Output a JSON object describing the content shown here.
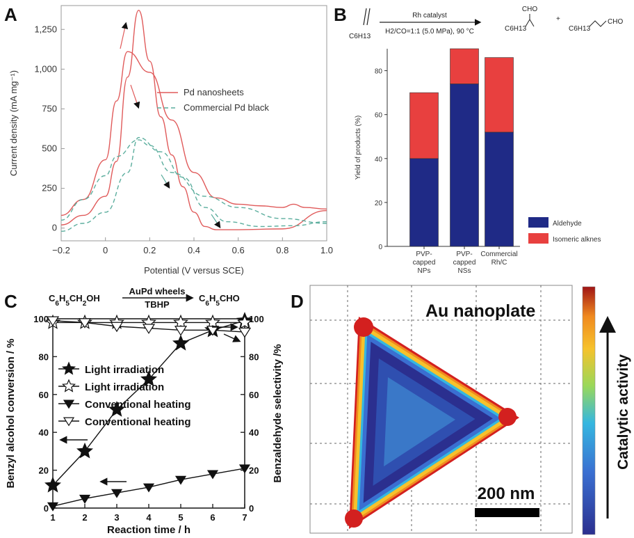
{
  "chart_data": [
    {
      "panel": "A",
      "type": "line",
      "xlabel": "Potential (V versus SCE)",
      "ylabel": "Current density (mA mg⁻¹)",
      "xlim": [
        -0.2,
        1.0
      ],
      "ylim": [
        -80,
        1400
      ],
      "x_ticks": [
        "−0.2",
        "0",
        "0.2",
        "0.4",
        "0.6",
        "0.8",
        "1.0"
      ],
      "y_ticks": [
        "0",
        "250",
        "500",
        "750",
        "1,000",
        "1,250"
      ],
      "legend_position": "right",
      "series": [
        {
          "name": "Pd nanosheets",
          "style": "solid",
          "color": "#e05a5a",
          "forward": [
            [
              -0.2,
              20
            ],
            [
              -0.1,
              80
            ],
            [
              0,
              200
            ],
            [
              0.05,
              420
            ],
            [
              0.1,
              950
            ],
            [
              0.15,
              1370
            ],
            [
              0.2,
              1050
            ],
            [
              0.25,
              700
            ],
            [
              0.3,
              460
            ],
            [
              0.35,
              260
            ],
            [
              0.4,
              100
            ],
            [
              0.45,
              10
            ],
            [
              0.5,
              -10
            ],
            [
              0.6,
              -10
            ],
            [
              0.8,
              -5
            ],
            [
              1.0,
              110
            ]
          ],
          "reverse": [
            [
              1.0,
              120
            ],
            [
              0.9,
              130
            ],
            [
              0.85,
              150
            ],
            [
              0.8,
              130
            ],
            [
              0.7,
              140
            ],
            [
              0.6,
              150
            ],
            [
              0.5,
              190
            ],
            [
              0.4,
              350
            ],
            [
              0.3,
              680
            ],
            [
              0.2,
              980
            ],
            [
              0.1,
              1110
            ],
            [
              0.05,
              800
            ],
            [
              0,
              430
            ],
            [
              -0.1,
              180
            ],
            [
              -0.2,
              80
            ]
          ]
        },
        {
          "name": "Commercial Pd black",
          "style": "dashed",
          "color": "#5cae9e",
          "forward": [
            [
              -0.2,
              -20
            ],
            [
              -0.1,
              30
            ],
            [
              0,
              100
            ],
            [
              0.1,
              350
            ],
            [
              0.15,
              570
            ],
            [
              0.25,
              480
            ],
            [
              0.35,
              320
            ],
            [
              0.45,
              130
            ],
            [
              0.55,
              40
            ],
            [
              0.7,
              10
            ],
            [
              0.85,
              15
            ],
            [
              1.0,
              40
            ]
          ],
          "reverse": [
            [
              1.0,
              30
            ],
            [
              0.8,
              60
            ],
            [
              0.6,
              130
            ],
            [
              0.45,
              200
            ],
            [
              0.3,
              350
            ],
            [
              0.2,
              520
            ],
            [
              0.15,
              555
            ],
            [
              0.05,
              450
            ],
            [
              0,
              330
            ],
            [
              -0.1,
              180
            ],
            [
              -0.2,
              50
            ]
          ]
        }
      ]
    },
    {
      "panel": "B",
      "type": "bar",
      "ylabel": "Yield of products (%)",
      "ylim": [
        0,
        90
      ],
      "y_ticks": [
        "0",
        "20",
        "40",
        "60",
        "80"
      ],
      "categories": [
        "PVP-\ncapped\nNPs",
        "PVP-\ncapped\nNSs",
        "Commercial\nRh/C"
      ],
      "stacked": true,
      "legend_position": "right",
      "series": [
        {
          "name": "Aldehyde",
          "color": "#1f2a86",
          "values": [
            40,
            74,
            52
          ]
        },
        {
          "name": "Isomeric alknes",
          "color": "#e8403f",
          "values": [
            30,
            16,
            34
          ]
        }
      ],
      "reaction": {
        "reactant": "C6H13",
        "catalyst": "Rh catalyst",
        "conditions": "H2/CO=1:1 (5.0 MPa), 90 °C",
        "product1": "C6H13",
        "product1_group": "CHO",
        "plus": "+",
        "product2": "C6H13",
        "product2_group": "CHO"
      }
    },
    {
      "panel": "C",
      "type": "line",
      "xlabel": "Reaction time / h",
      "ylabel": "Benzyl alcohol conversion / %",
      "y2label": "Benzaldehyde selectivity /%",
      "xlim": [
        1,
        7
      ],
      "ylim": [
        0,
        100
      ],
      "x_ticks": [
        "1",
        "2",
        "3",
        "4",
        "5",
        "6",
        "7"
      ],
      "y_ticks": [
        "0",
        "20",
        "40",
        "60",
        "80",
        "100"
      ],
      "reaction": {
        "left": "C6H5CH2OH",
        "above": "AuPd wheels",
        "below": "TBHP",
        "right": "C6H5CHO"
      },
      "series": [
        {
          "name": "Light irradiation",
          "marker": "filled-star",
          "axis": "left",
          "x": [
            1,
            2,
            3,
            4,
            5,
            6,
            7
          ],
          "y": [
            12,
            30,
            52,
            68,
            87,
            94,
            99
          ]
        },
        {
          "name": "Light irradiation",
          "marker": "open-star",
          "axis": "right",
          "x": [
            1,
            2,
            3,
            4,
            5,
            6,
            7
          ],
          "y": [
            98,
            98,
            98,
            98,
            98,
            98,
            98
          ]
        },
        {
          "name": "Conventional heating",
          "marker": "filled-triangle-down",
          "axis": "left",
          "x": [
            1,
            2,
            3,
            4,
            5,
            6,
            7
          ],
          "y": [
            1,
            5,
            8,
            11,
            15,
            18,
            21
          ]
        },
        {
          "name": "Conventional heating",
          "marker": "open-triangle-down",
          "axis": "right",
          "x": [
            1,
            2,
            3,
            4,
            5,
            6,
            7
          ],
          "y": [
            99,
            98,
            96,
            95,
            94,
            94,
            93
          ]
        }
      ]
    },
    {
      "panel": "D",
      "type": "heatmap",
      "title": "Au nanoplate",
      "scalebar_label": "200 nm",
      "colorbar_label": "Catalytic activity",
      "colors": [
        "#2b2f8f",
        "#3a6fd1",
        "#35b7e0",
        "#f6c22c",
        "#f08a1f",
        "#d3201f"
      ]
    }
  ]
}
